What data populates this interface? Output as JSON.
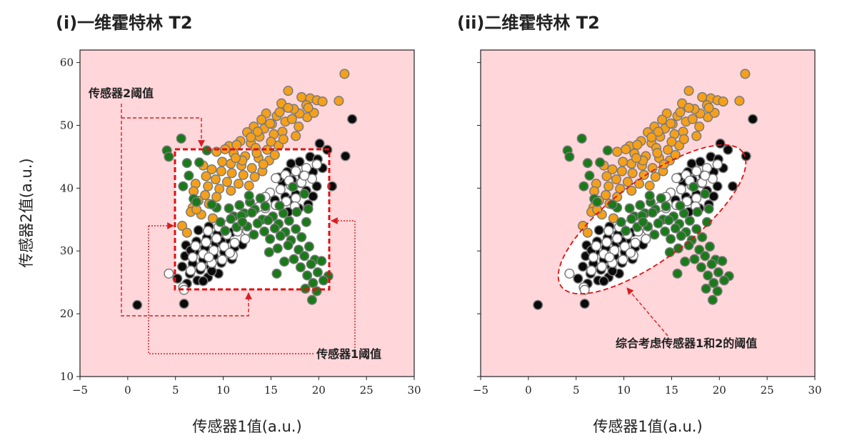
{
  "chart_data": [
    {
      "type": "scatter",
      "title": "(i)一维霍特林 T2",
      "xlabel": "传感器1值(a.u.)",
      "ylabel": "传感器2值(a.u.)",
      "xlim": [
        -5,
        30
      ],
      "ylim": [
        10,
        62
      ],
      "xticks": [
        "−5",
        "0",
        "5",
        "10",
        "15",
        "20",
        "25",
        "30"
      ],
      "yticks": [
        "10",
        "20",
        "30",
        "40",
        "50",
        "60"
      ],
      "background_color": "#ffd6da",
      "acceptance_region": {
        "shape": "rectangle",
        "x_range": [
          4.8,
          21.0
        ],
        "y_range": [
          23.9,
          46.3
        ],
        "fill": "#ffffff",
        "edge": "#e01010"
      },
      "annotations": [
        {
          "text": "传感器2阈值",
          "x": -3.8,
          "y": 56.0
        },
        {
          "text": "传感器1阈值",
          "x": 19.5,
          "y": 13.6
        }
      ],
      "threshold_labels": {
        "sensor2": "传感器2阈值",
        "sensor1": "传感器1阈值"
      }
    },
    {
      "type": "scatter",
      "title": "(ii)二维霍特林 T2",
      "xlabel": "传感器1值(a.u.)",
      "ylabel": "",
      "xlim": [
        -5,
        30
      ],
      "ylim": [
        10,
        62
      ],
      "xticks": [
        "−5",
        "0",
        "5",
        "10",
        "15",
        "20",
        "25",
        "30"
      ],
      "yticks": [
        "",
        "",
        "",
        "",
        "",
        ""
      ],
      "background_color": "#ffd6da",
      "acceptance_region": {
        "shape": "ellipse",
        "center": [
          13.5,
          35.0
        ],
        "fill": "#ffffff",
        "edge": "#e01010"
      },
      "annotations": [
        {
          "text": "综合考虑传感器1和2的阈值",
          "x": 18.5,
          "y": 15.3
        }
      ],
      "threshold_labels": {
        "combined": "综合考虑传感器1和2的阈值"
      }
    }
  ],
  "series": [
    {
      "color": "#f5a01a",
      "points": [
        [
          22.7,
          58.2
        ],
        [
          16.8,
          55.5
        ],
        [
          18.2,
          54.5
        ],
        [
          19.1,
          54.3
        ],
        [
          19.8,
          54.0
        ],
        [
          20.4,
          53.8
        ],
        [
          18.7,
          53.2
        ],
        [
          16.1,
          53.5
        ],
        [
          22.1,
          53.9
        ],
        [
          14.5,
          51.9
        ],
        [
          15.6,
          51.5
        ],
        [
          14.0,
          50.9
        ],
        [
          15.1,
          50.2
        ],
        [
          16.5,
          50.6
        ],
        [
          17.2,
          51.0
        ],
        [
          18.8,
          51.3
        ],
        [
          19.5,
          52.0
        ],
        [
          13.2,
          49.8
        ],
        [
          14.3,
          49.5
        ],
        [
          12.5,
          48.9
        ],
        [
          13.8,
          48.2
        ],
        [
          15.3,
          48.6
        ],
        [
          16.2,
          49.0
        ],
        [
          17.6,
          48.3
        ],
        [
          11.8,
          47.5
        ],
        [
          12.9,
          47.2
        ],
        [
          10.6,
          46.7
        ],
        [
          13.4,
          46.4
        ],
        [
          14.6,
          46.1
        ],
        [
          15.8,
          46.8
        ],
        [
          9.3,
          45.8
        ],
        [
          11.1,
          45.5
        ],
        [
          12.3,
          45.1
        ],
        [
          13.7,
          44.8
        ],
        [
          14.8,
          44.4
        ],
        [
          15.4,
          45.3
        ],
        [
          9.9,
          44.2
        ],
        [
          10.8,
          43.9
        ],
        [
          11.9,
          43.6
        ],
        [
          13.0,
          43.2
        ],
        [
          14.1,
          42.7
        ],
        [
          7.9,
          43.6
        ],
        [
          8.8,
          43.0
        ],
        [
          9.8,
          42.7
        ],
        [
          10.9,
          42.4
        ],
        [
          12.1,
          42.1
        ],
        [
          13.3,
          41.8
        ],
        [
          8.2,
          41.9
        ],
        [
          9.2,
          41.4
        ],
        [
          10.4,
          41.0
        ],
        [
          11.6,
          40.7
        ],
        [
          12.7,
          40.4
        ],
        [
          7.1,
          40.7
        ],
        [
          8.4,
          40.3
        ],
        [
          9.6,
          39.9
        ],
        [
          10.8,
          39.6
        ],
        [
          6.9,
          39.5
        ],
        [
          8.1,
          38.9
        ],
        [
          9.3,
          38.6
        ],
        [
          7.4,
          38.0
        ],
        [
          8.5,
          37.5
        ],
        [
          6.8,
          36.9
        ],
        [
          6.6,
          36.2
        ],
        [
          7.7,
          35.8
        ],
        [
          5.7,
          34.0
        ],
        [
          6.2,
          32.9
        ],
        [
          8.9,
          35.2
        ],
        [
          7.2,
          36.6
        ],
        [
          18.0,
          51.9
        ],
        [
          17.4,
          52.6
        ],
        [
          16.8,
          52.8
        ],
        [
          15.9,
          52.1
        ],
        [
          14.9,
          50.3
        ],
        [
          13.6,
          49.0
        ],
        [
          12.9,
          48.1
        ],
        [
          11.4,
          46.9
        ],
        [
          10.2,
          46.2
        ],
        [
          12.0,
          44.4
        ],
        [
          13.5,
          45.6
        ],
        [
          16.3,
          47.8
        ],
        [
          15.0,
          47.4
        ],
        [
          11.3,
          44.8
        ],
        [
          14.2,
          43.8
        ],
        [
          17.9,
          49.8
        ],
        [
          18.9,
          52.8
        ]
      ]
    },
    {
      "color": "#0a0a0a",
      "points": [
        [
          23.5,
          51.0
        ],
        [
          22.8,
          45.1
        ],
        [
          20.1,
          47.1
        ],
        [
          20.9,
          46.1
        ],
        [
          19.1,
          45.0
        ],
        [
          18.0,
          44.2
        ],
        [
          17.1,
          43.9
        ],
        [
          20.4,
          43.2
        ],
        [
          19.4,
          42.6
        ],
        [
          18.3,
          42.0
        ],
        [
          17.2,
          41.3
        ],
        [
          16.2,
          40.9
        ],
        [
          19.8,
          40.3
        ],
        [
          18.7,
          39.6
        ],
        [
          17.6,
          39.0
        ],
        [
          16.5,
          38.6
        ],
        [
          15.4,
          38.1
        ],
        [
          18.9,
          37.4
        ],
        [
          17.9,
          36.8
        ],
        [
          16.8,
          36.2
        ],
        [
          8.5,
          33.9
        ],
        [
          7.4,
          33.3
        ],
        [
          9.4,
          32.7
        ],
        [
          8.3,
          32.1
        ],
        [
          7.2,
          31.5
        ],
        [
          6.1,
          30.9
        ],
        [
          10.3,
          31.8
        ],
        [
          9.2,
          31.2
        ],
        [
          8.1,
          30.5
        ],
        [
          7.0,
          29.9
        ],
        [
          6.0,
          29.2
        ],
        [
          11.2,
          30.6
        ],
        [
          10.1,
          29.8
        ],
        [
          9.0,
          29.2
        ],
        [
          7.9,
          28.6
        ],
        [
          6.8,
          28.0
        ],
        [
          5.7,
          27.5
        ],
        [
          10.9,
          28.7
        ],
        [
          9.8,
          28.1
        ],
        [
          8.7,
          27.5
        ],
        [
          7.6,
          27.0
        ],
        [
          6.5,
          26.4
        ],
        [
          9.5,
          26.4
        ],
        [
          8.4,
          25.8
        ],
        [
          7.3,
          25.3
        ],
        [
          6.2,
          24.8
        ],
        [
          5.2,
          25.6
        ],
        [
          7.9,
          25.2
        ],
        [
          1.0,
          21.4
        ],
        [
          5.9,
          21.6
        ],
        [
          9.8,
          31.5
        ],
        [
          10.9,
          33.0
        ],
        [
          21.4,
          40.3
        ],
        [
          15.8,
          41.7
        ],
        [
          16.7,
          42.6
        ],
        [
          19.9,
          44.6
        ],
        [
          18.1,
          40.8
        ],
        [
          17.1,
          38.1
        ],
        [
          19.4,
          38.7
        ],
        [
          12.0,
          31.0
        ],
        [
          6.6,
          30.1
        ],
        [
          8.8,
          26.8
        ]
      ]
    },
    {
      "color": "#ffffff",
      "points": [
        [
          19.8,
          43.8
        ],
        [
          18.7,
          43.2
        ],
        [
          17.6,
          42.7
        ],
        [
          16.5,
          42.1
        ],
        [
          15.5,
          41.6
        ],
        [
          19.3,
          41.5
        ],
        [
          18.2,
          40.9
        ],
        [
          17.1,
          40.4
        ],
        [
          16.0,
          39.8
        ],
        [
          14.9,
          39.3
        ],
        [
          17.6,
          38.4
        ],
        [
          16.6,
          37.9
        ],
        [
          15.5,
          37.3
        ],
        [
          14.4,
          36.8
        ],
        [
          17.5,
          37.1
        ],
        [
          10.6,
          34.3
        ],
        [
          9.5,
          33.8
        ],
        [
          8.4,
          33.2
        ],
        [
          11.5,
          33.1
        ],
        [
          10.4,
          32.6
        ],
        [
          9.3,
          32.0
        ],
        [
          8.2,
          31.4
        ],
        [
          7.1,
          30.8
        ],
        [
          12.3,
          31.9
        ],
        [
          11.2,
          31.3
        ],
        [
          10.1,
          30.7
        ],
        [
          9.0,
          30.1
        ],
        [
          7.9,
          29.5
        ],
        [
          6.8,
          29.0
        ],
        [
          11.0,
          29.3
        ],
        [
          9.9,
          28.6
        ],
        [
          8.8,
          28.1
        ],
        [
          7.7,
          27.5
        ],
        [
          6.6,
          26.9
        ],
        [
          4.3,
          26.4
        ],
        [
          5.8,
          24.2
        ],
        [
          5.9,
          23.8
        ],
        [
          14.4,
          38.6
        ],
        [
          16.9,
          41.2
        ],
        [
          18.5,
          42.0
        ],
        [
          13.7,
          37.0
        ],
        [
          10.7,
          29.7
        ],
        [
          8.5,
          29.0
        ],
        [
          12.5,
          33.3
        ]
      ]
    },
    {
      "color": "#1a7a1a",
      "points": [
        [
          4.1,
          46.0
        ],
        [
          4.3,
          45.0
        ],
        [
          5.6,
          47.9
        ],
        [
          6.2,
          44.0
        ],
        [
          7.5,
          44.1
        ],
        [
          8.3,
          46.0
        ],
        [
          6.4,
          42.0
        ],
        [
          5.8,
          40.3
        ],
        [
          6.9,
          38.3
        ],
        [
          7.2,
          37.8
        ],
        [
          10.6,
          36.8
        ],
        [
          11.7,
          37.3
        ],
        [
          12.8,
          37.8
        ],
        [
          13.9,
          38.4
        ],
        [
          11.1,
          35.5
        ],
        [
          12.2,
          36.0
        ],
        [
          13.3,
          36.6
        ],
        [
          14.4,
          37.1
        ],
        [
          9.7,
          34.6
        ],
        [
          10.8,
          35.1
        ],
        [
          11.9,
          35.6
        ],
        [
          13.0,
          36.1
        ],
        [
          14.1,
          35.0
        ],
        [
          15.2,
          35.5
        ],
        [
          16.3,
          36.0
        ],
        [
          12.5,
          33.9
        ],
        [
          13.6,
          34.4
        ],
        [
          14.7,
          34.9
        ],
        [
          15.8,
          34.3
        ],
        [
          16.9,
          34.8
        ],
        [
          13.2,
          32.6
        ],
        [
          14.3,
          33.1
        ],
        [
          15.4,
          33.6
        ],
        [
          16.5,
          33.0
        ],
        [
          17.6,
          33.5
        ],
        [
          18.7,
          34.6
        ],
        [
          14.9,
          31.9
        ],
        [
          16.0,
          32.4
        ],
        [
          17.1,
          31.7
        ],
        [
          18.2,
          32.2
        ],
        [
          15.7,
          30.4
        ],
        [
          16.8,
          30.9
        ],
        [
          17.9,
          30.2
        ],
        [
          19.0,
          30.7
        ],
        [
          17.4,
          28.7
        ],
        [
          18.5,
          29.2
        ],
        [
          19.6,
          28.6
        ],
        [
          18.1,
          27.4
        ],
        [
          19.2,
          27.9
        ],
        [
          20.3,
          28.4
        ],
        [
          18.8,
          26.1
        ],
        [
          19.9,
          26.6
        ],
        [
          21.0,
          26.0
        ],
        [
          19.4,
          24.9
        ],
        [
          20.5,
          25.3
        ],
        [
          18.6,
          24.0
        ],
        [
          19.3,
          22.2
        ],
        [
          19.8,
          23.6
        ],
        [
          15.6,
          26.4
        ],
        [
          17.3,
          40.2
        ],
        [
          18.5,
          39.1
        ],
        [
          15.9,
          37.2
        ],
        [
          12.7,
          38.8
        ],
        [
          11.4,
          33.8
        ],
        [
          10.2,
          33.2
        ],
        [
          14.8,
          29.8
        ],
        [
          16.4,
          28.3
        ],
        [
          12.0,
          34.6
        ],
        [
          9.3,
          36.9
        ],
        [
          8.8,
          37.4
        ],
        [
          17.7,
          36.2
        ],
        [
          18.9,
          36.7
        ]
      ]
    }
  ]
}
